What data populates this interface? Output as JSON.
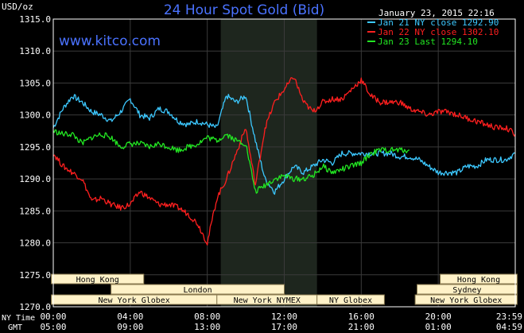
{
  "header": {
    "title": "24 Hour Spot Gold (Bid)",
    "unit": "USD/oz",
    "timestamp": "January 23, 2015 22:16",
    "watermark": "www.kitco.com"
  },
  "colors": {
    "background": "#000000",
    "grid": "#3a3a3a",
    "frame": "#ffffff",
    "title": "#4a72ff",
    "watermark": "#4a72ff",
    "jan21": "#3cc8ff",
    "jan22": "#ff1f1f",
    "jan23": "#22e622",
    "band": "#1e261e",
    "session_fill": "#fff2c8",
    "session_text": "#000000"
  },
  "chart_data": {
    "type": "line",
    "title": "24 Hour Spot Gold (Bid)",
    "ylabel": "USD/oz",
    "ylim": [
      1270,
      1315
    ],
    "yticks": [
      "1315.0",
      "1310.0",
      "1305.0",
      "1300.0",
      "1295.0",
      "1290.0",
      "1285.0",
      "1280.0",
      "1275.0",
      "1270.0"
    ],
    "xlim": [
      0,
      24
    ],
    "xticks_ny": [
      "00:00",
      "04:00",
      "08:00",
      "12:00",
      "16:00",
      "20:00",
      "23:59"
    ],
    "xticks_gmt": [
      "05:00",
      "09:00",
      "13:00",
      "17:00",
      "21:00",
      "01:00",
      "04:59"
    ],
    "row_labels": [
      "NY Time",
      "GMT"
    ],
    "grid": true,
    "legend_position": "top-right",
    "highlight_band": [
      8.7,
      13.7
    ],
    "series": [
      {
        "name": "Jan 21 NY close 1292.90",
        "color_key": "jan21",
        "x": [
          0,
          0.5,
          1,
          1.5,
          2,
          2.5,
          3,
          3.5,
          4,
          4.5,
          5,
          5.5,
          6,
          6.5,
          7,
          7.5,
          8,
          8.5,
          9,
          9.5,
          10,
          10.5,
          11,
          11.5,
          12,
          12.5,
          13,
          13.5,
          14,
          14.5,
          15,
          15.5,
          16,
          16.5,
          17,
          17.5,
          18,
          18.5,
          19,
          19.5,
          20,
          20.5,
          21,
          21.5,
          22,
          22.5,
          23,
          23.5,
          24
        ],
        "y": [
          1298,
          1301,
          1303,
          1302,
          1300.5,
          1300,
          1299,
          1300.5,
          1302.5,
          1300,
          1299.5,
          1301,
          1300.5,
          1299,
          1298.5,
          1299,
          1298.5,
          1298,
          1303,
          1302,
          1303,
          1296,
          1290,
          1288,
          1290,
          1292,
          1291,
          1292,
          1293,
          1292.5,
          1294,
          1294,
          1294,
          1294,
          1294,
          1294,
          1293.5,
          1293.5,
          1293,
          1292,
          1291,
          1291,
          1291,
          1292,
          1292,
          1293,
          1293,
          1293,
          1294
        ]
      },
      {
        "name": "Jan 22 NY close 1302.10",
        "color_key": "jan22",
        "x": [
          0,
          0.5,
          1,
          1.5,
          2,
          2.5,
          3,
          3.5,
          4,
          4.5,
          5,
          5.5,
          6,
          6.5,
          7,
          7.5,
          8,
          8.5,
          9,
          9.5,
          10,
          10.5,
          11,
          11.5,
          12,
          12.5,
          13,
          13.5,
          14,
          14.5,
          15,
          15.5,
          16,
          16.5,
          17,
          17.5,
          18,
          18.5,
          19,
          19.5,
          20,
          20.5,
          21,
          21.5,
          22,
          22.5,
          23,
          23.5,
          24
        ],
        "y": [
          1294,
          1292,
          1291,
          1290,
          1286.5,
          1287,
          1286,
          1285.5,
          1286,
          1288,
          1287,
          1286,
          1286,
          1285.5,
          1284.5,
          1283,
          1280,
          1287,
          1290,
          1294,
          1298,
          1289,
          1298,
          1302,
          1304,
          1306,
          1302,
          1300.5,
          1302,
          1302.5,
          1302.5,
          1304,
          1305.5,
          1303,
          1302,
          1302,
          1302,
          1301,
          1300.5,
          1300,
          1300.5,
          1300.5,
          1300,
          1299.5,
          1299,
          1298.5,
          1298,
          1298,
          1297
        ]
      },
      {
        "name": "Jan 23 Last 1294.10",
        "color_key": "jan23",
        "x": [
          0,
          0.5,
          1,
          1.5,
          2,
          2.5,
          3,
          3.5,
          4,
          4.5,
          5,
          5.5,
          6,
          6.5,
          7,
          7.5,
          8,
          8.5,
          9,
          9.5,
          10,
          10.5,
          11,
          11.5,
          12,
          12.5,
          13,
          13.5,
          14,
          14.5,
          15,
          15.5,
          16,
          16.5,
          17,
          17.5,
          18,
          18.5
        ],
        "y": [
          1297.5,
          1297,
          1297,
          1295.5,
          1296.5,
          1297,
          1296.5,
          1295,
          1295.5,
          1295.5,
          1295,
          1295.5,
          1295,
          1294.5,
          1295,
          1295.5,
          1296.5,
          1296,
          1297,
          1296,
          1295.5,
          1288,
          1289,
          1290,
          1290.5,
          1290,
          1290,
          1290.5,
          1292,
          1291,
          1291.5,
          1292,
          1292.5,
          1294,
          1294.5,
          1294.5,
          1294.5,
          1294.5
        ]
      }
    ],
    "sessions": [
      {
        "name": "Hong Kong",
        "row": 0,
        "start": -0.1,
        "end": 4.7
      },
      {
        "name": "Hong Kong",
        "row": 0,
        "start": 20.1,
        "end": 24.1
      },
      {
        "name": "London",
        "row": 1,
        "start": 3.0,
        "end": 12.0
      },
      {
        "name": "Sydney",
        "row": 1,
        "start": 18.9,
        "end": 24.1
      },
      {
        "name": "New York Globex",
        "row": 2,
        "start": -0.1,
        "end": 8.5
      },
      {
        "name": "New York NYMEX",
        "row": 2,
        "start": 8.5,
        "end": 13.7
      },
      {
        "name": "NY Globex",
        "row": 2,
        "start": 13.7,
        "end": 17.2
      },
      {
        "name": "New York Globex",
        "row": 2,
        "start": 18.8,
        "end": 24.1
      }
    ]
  }
}
